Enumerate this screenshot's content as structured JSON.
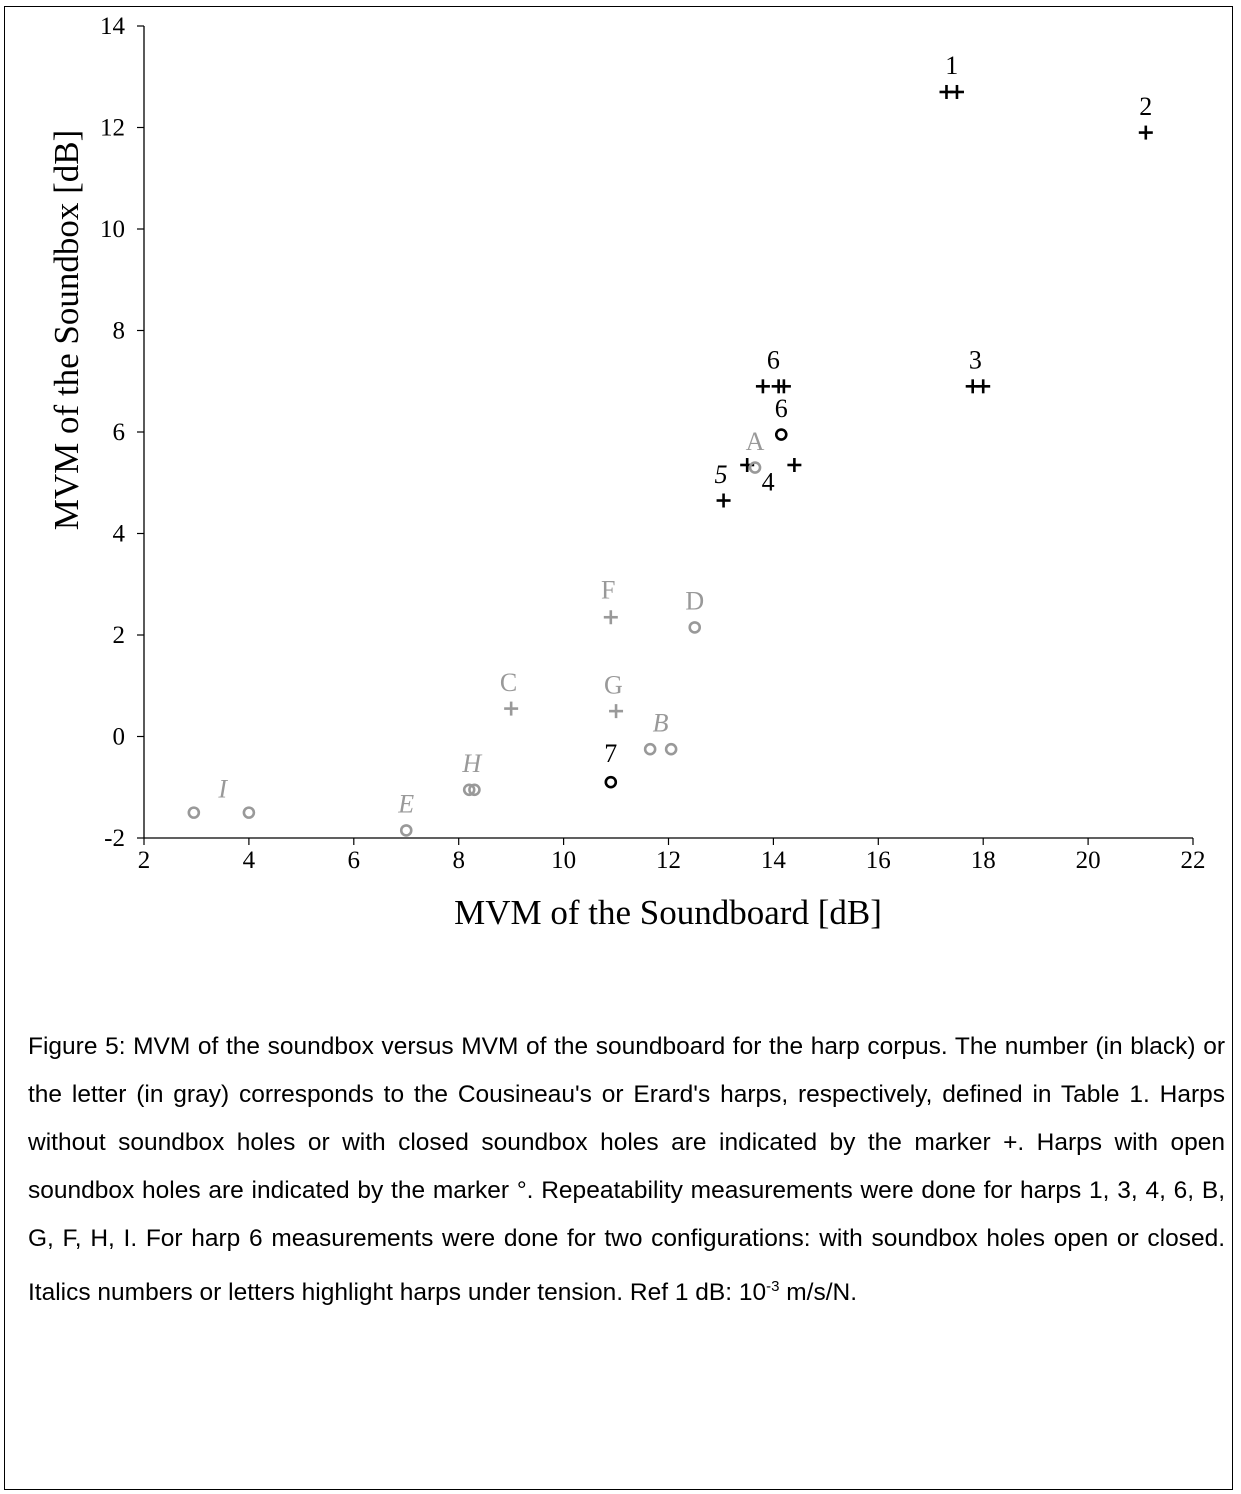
{
  "chart_data": {
    "type": "scatter",
    "xlabel": "MVM of the Soundboard [dB]",
    "ylabel": "MVM of the Soundbox [dB]",
    "xlim": [
      2,
      22
    ],
    "ylim": [
      -2,
      14
    ],
    "xticks": [
      "2",
      "4",
      "6",
      "8",
      "10",
      "12",
      "14",
      "16",
      "18",
      "20",
      "22"
    ],
    "yticks": [
      "-2",
      "0",
      "2",
      "4",
      "6",
      "8",
      "10",
      "12",
      "14"
    ],
    "colors": {
      "cousineau": "#000000",
      "erard": "#999999"
    },
    "grid": false,
    "points": [
      {
        "x": 17.3,
        "y": 12.7,
        "marker": "+",
        "group": "cousineau"
      },
      {
        "x": 17.5,
        "y": 12.7,
        "marker": "+",
        "group": "cousineau"
      },
      {
        "x": 21.1,
        "y": 11.9,
        "marker": "+",
        "group": "cousineau"
      },
      {
        "x": 17.8,
        "y": 6.9,
        "marker": "+",
        "group": "cousineau"
      },
      {
        "x": 18.0,
        "y": 6.9,
        "marker": "+",
        "group": "cousineau"
      },
      {
        "x": 13.8,
        "y": 6.9,
        "marker": "+",
        "group": "cousineau"
      },
      {
        "x": 14.1,
        "y": 6.9,
        "marker": "+",
        "group": "cousineau"
      },
      {
        "x": 14.2,
        "y": 6.9,
        "marker": "+",
        "group": "cousineau"
      },
      {
        "x": 14.15,
        "y": 5.95,
        "marker": "o",
        "group": "cousineau"
      },
      {
        "x": 13.5,
        "y": 5.35,
        "marker": "+",
        "group": "cousineau"
      },
      {
        "x": 14.4,
        "y": 5.35,
        "marker": "+",
        "group": "cousineau"
      },
      {
        "x": 13.05,
        "y": 4.65,
        "marker": "+",
        "group": "cousineau"
      },
      {
        "x": 10.9,
        "y": -0.9,
        "marker": "o",
        "group": "cousineau"
      },
      {
        "x": 13.65,
        "y": 5.3,
        "marker": "o",
        "group": "erard"
      },
      {
        "x": 12.5,
        "y": 2.15,
        "marker": "o",
        "group": "erard"
      },
      {
        "x": 10.9,
        "y": 2.35,
        "marker": "+",
        "group": "erard"
      },
      {
        "x": 9.0,
        "y": 0.55,
        "marker": "+",
        "group": "erard"
      },
      {
        "x": 11.0,
        "y": 0.5,
        "marker": "+",
        "group": "erard"
      },
      {
        "x": 11.65,
        "y": -0.25,
        "marker": "o",
        "group": "erard"
      },
      {
        "x": 12.05,
        "y": -0.25,
        "marker": "o",
        "group": "erard"
      },
      {
        "x": 8.2,
        "y": -1.05,
        "marker": "o",
        "group": "erard"
      },
      {
        "x": 8.3,
        "y": -1.05,
        "marker": "o",
        "group": "erard"
      },
      {
        "x": 7.0,
        "y": -1.85,
        "marker": "o",
        "group": "erard"
      },
      {
        "x": 2.95,
        "y": -1.5,
        "marker": "o",
        "group": "erard"
      },
      {
        "x": 4.0,
        "y": -1.5,
        "marker": "o",
        "group": "erard"
      }
    ],
    "labels": [
      {
        "text": "1",
        "x": 17.4,
        "y": 13.05,
        "group": "cousineau",
        "italic": false
      },
      {
        "text": "2",
        "x": 21.1,
        "y": 12.25,
        "group": "cousineau",
        "italic": false
      },
      {
        "text": "3",
        "x": 17.85,
        "y": 7.25,
        "group": "cousineau",
        "italic": false
      },
      {
        "text": "6",
        "x": 14.0,
        "y": 7.25,
        "group": "cousineau",
        "italic": false
      },
      {
        "text": "6",
        "x": 14.15,
        "y": 6.3,
        "group": "cousineau",
        "italic": false
      },
      {
        "text": "5",
        "x": 13.0,
        "y": 5.0,
        "group": "cousineau",
        "italic": true
      },
      {
        "text": "4",
        "x": 13.9,
        "y": 4.85,
        "group": "cousineau",
        "italic": false
      },
      {
        "text": "7",
        "x": 10.9,
        "y": -0.5,
        "group": "cousineau",
        "italic": false
      },
      {
        "text": "A",
        "x": 13.65,
        "y": 5.65,
        "group": "erard",
        "italic": false
      },
      {
        "text": "D",
        "x": 12.5,
        "y": 2.5,
        "group": "erard",
        "italic": false
      },
      {
        "text": "F",
        "x": 10.85,
        "y": 2.72,
        "group": "erard",
        "italic": false
      },
      {
        "text": "C",
        "x": 8.95,
        "y": 0.9,
        "group": "erard",
        "italic": false
      },
      {
        "text": "G",
        "x": 10.95,
        "y": 0.85,
        "group": "erard",
        "italic": false
      },
      {
        "text": "B",
        "x": 11.85,
        "y": 0.1,
        "group": "erard",
        "italic": true
      },
      {
        "text": "H",
        "x": 8.25,
        "y": -0.7,
        "group": "erard",
        "italic": true
      },
      {
        "text": "E",
        "x": 7.0,
        "y": -1.5,
        "group": "erard",
        "italic": true
      },
      {
        "text": "I",
        "x": 3.5,
        "y": -1.2,
        "group": "erard",
        "italic": true
      }
    ]
  },
  "caption": {
    "main": "Figure 5: MVM of the soundbox versus MVM of the soundboard for the harp corpus. The number (in black) or the letter (in gray) corresponds to the Cousineau's or Erard's harps, respectively, defined in Table 1. Harps without soundbox holes or with closed soundbox holes are indicated by the marker +. Harps with open soundbox holes are indicated by the marker °. Repeatability measurements were done for harps 1, 3, 4, 6, B, G, F, H, I. For harp 6 measurements were done for two configurations: with soundbox holes open or closed. Italics numbers or letters highlight harps under tension. Ref 1 dB: 10",
    "exponent": "-3",
    "unit": " m/s/N."
  }
}
